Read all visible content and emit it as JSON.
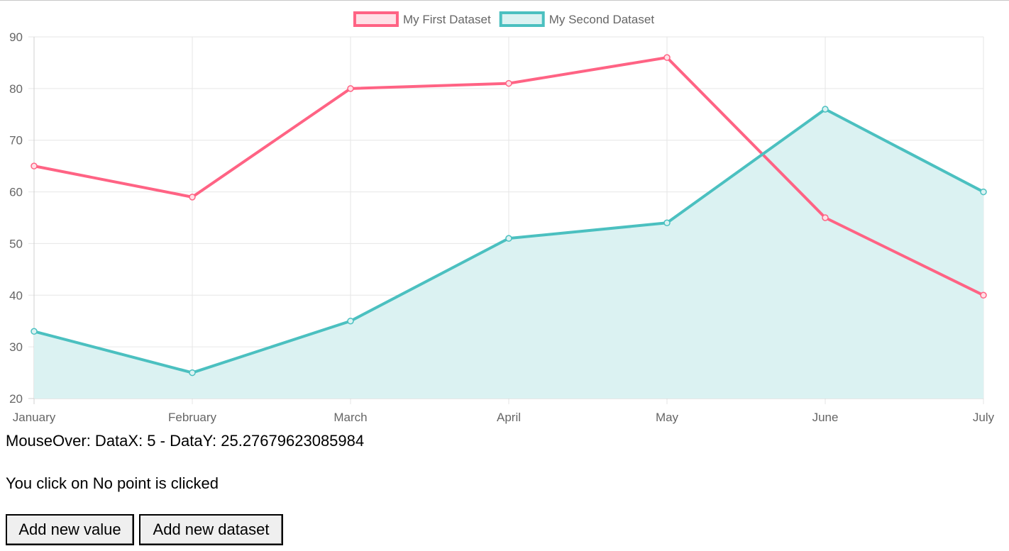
{
  "chart_data": {
    "type": "line",
    "categories": [
      "January",
      "February",
      "March",
      "April",
      "May",
      "June",
      "July"
    ],
    "ylim": [
      20,
      90
    ],
    "yticks": [
      20,
      30,
      40,
      50,
      60,
      70,
      80,
      90
    ],
    "grid": true,
    "legend_position": "top",
    "series": [
      {
        "name": "My First Dataset",
        "values": [
          65,
          59,
          80,
          81,
          86,
          55,
          40
        ],
        "color": "#ff6384",
        "fill": false,
        "fill_color": "#ffe0e6"
      },
      {
        "name": "My Second Dataset",
        "values": [
          33,
          25,
          35,
          51,
          54,
          76,
          60
        ],
        "color": "#4bc0c0",
        "fill": true,
        "fill_color": "#dbf2f2"
      }
    ]
  },
  "status": {
    "mouseover_text": "MouseOver: DataX: 5 - DataY: 25.27679623085984",
    "click_text": "You click on No point is clicked"
  },
  "buttons": {
    "add_value_label": "Add new value",
    "add_dataset_label": "Add new dataset"
  }
}
